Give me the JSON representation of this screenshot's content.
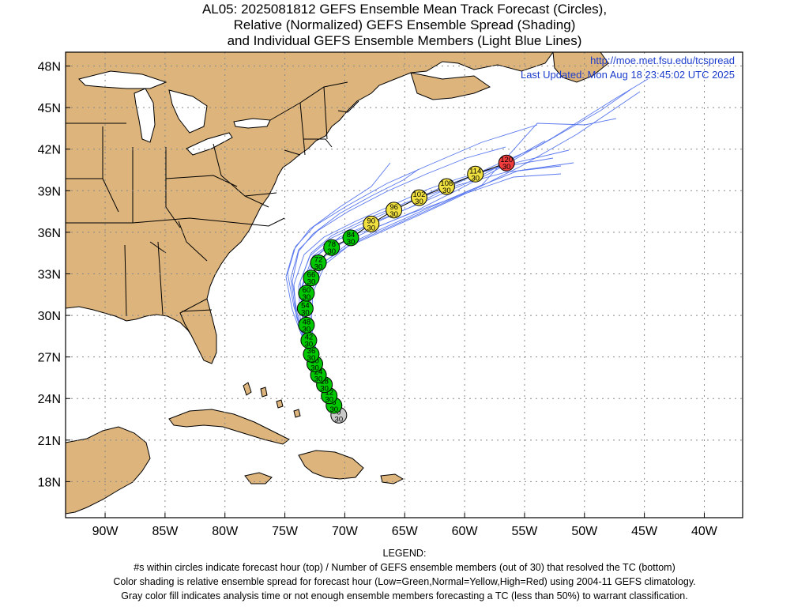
{
  "title": {
    "line1": "AL05: 2025081812 GEFS Ensemble Mean Track Forecast (Circles),",
    "line2": "Relative (Normalized) GEFS Ensemble Spread (Shading)",
    "line3": "and Individual GEFS Ensemble Members (Light Blue Lines)"
  },
  "header": {
    "url": "http://moe.met.fsu.edu/tcspread",
    "updated": "Last Updated: Mon Aug 18 23:45:02 UTC 2025"
  },
  "axes": {
    "lon_labels": [
      "90W",
      "85W",
      "80W",
      "75W",
      "70W",
      "65W",
      "60W",
      "55W",
      "50W",
      "45W",
      "40W"
    ],
    "lat_labels": [
      "48N",
      "45N",
      "42N",
      "39N",
      "36N",
      "33N",
      "30N",
      "27N",
      "24N",
      "21N",
      "18N"
    ],
    "lon_range": [
      -93.3,
      -36.8
    ],
    "lat_range": [
      15.4,
      49.0
    ],
    "grid": true
  },
  "colors": {
    "land": "#dcb47c",
    "water": "#ffffff",
    "member_line": "#5a78ee",
    "low": "#00c800",
    "normal": "#f0e040",
    "high": "#f03c3c",
    "gray": "#c8c8c8"
  },
  "track": [
    {
      "hour": "0",
      "members": "30",
      "lon": -70.5,
      "lat": 22.8,
      "cat": "gray"
    },
    {
      "hour": "6",
      "members": "30",
      "lon": -70.9,
      "lat": 23.5,
      "cat": "low"
    },
    {
      "hour": "12",
      "members": "30",
      "lon": -71.3,
      "lat": 24.2,
      "cat": "low"
    },
    {
      "hour": "18",
      "members": "30",
      "lon": -71.7,
      "lat": 25.0,
      "cat": "low"
    },
    {
      "hour": "24",
      "members": "30",
      "lon": -72.2,
      "lat": 25.7,
      "cat": "low"
    },
    {
      "hour": "30",
      "members": "30",
      "lon": -72.5,
      "lat": 26.5,
      "cat": "low"
    },
    {
      "hour": "36",
      "members": "30",
      "lon": -72.8,
      "lat": 27.2,
      "cat": "low"
    },
    {
      "hour": "42",
      "members": "30",
      "lon": -73.0,
      "lat": 28.2,
      "cat": "low"
    },
    {
      "hour": "48",
      "members": "30",
      "lon": -73.2,
      "lat": 29.3,
      "cat": "low"
    },
    {
      "hour": "54",
      "members": "30",
      "lon": -73.3,
      "lat": 30.5,
      "cat": "low"
    },
    {
      "hour": "60",
      "members": "30",
      "lon": -73.2,
      "lat": 31.6,
      "cat": "low"
    },
    {
      "hour": "66",
      "members": "30",
      "lon": -72.8,
      "lat": 32.7,
      "cat": "low"
    },
    {
      "hour": "72",
      "members": "30",
      "lon": -72.2,
      "lat": 33.8,
      "cat": "low"
    },
    {
      "hour": "78",
      "members": "30",
      "lon": -71.1,
      "lat": 34.9,
      "cat": "low"
    },
    {
      "hour": "84",
      "members": "30",
      "lon": -69.5,
      "lat": 35.6,
      "cat": "low"
    },
    {
      "hour": "90",
      "members": "30",
      "lon": -67.8,
      "lat": 36.6,
      "cat": "normal"
    },
    {
      "hour": "96",
      "members": "30",
      "lon": -65.9,
      "lat": 37.6,
      "cat": "normal"
    },
    {
      "hour": "102",
      "members": "30",
      "lon": -63.8,
      "lat": 38.5,
      "cat": "normal"
    },
    {
      "hour": "108",
      "members": "30",
      "lon": -61.5,
      "lat": 39.3,
      "cat": "normal"
    },
    {
      "hour": "114",
      "members": "30",
      "lon": -59.1,
      "lat": 40.2,
      "cat": "normal"
    },
    {
      "hour": "120",
      "members": "30",
      "lon": -56.5,
      "lat": 41.0,
      "cat": "high"
    }
  ],
  "legend": {
    "heading": "LEGEND:",
    "line1": "#s within circles indicate forecast hour (top) / Number of GEFS ensemble members (out of 30) that resolved the TC (bottom)",
    "line2": "Color shading is relative ensemble spread for forecast hour (Low=Green,Normal=Yellow,High=Red) using 2004-11 GEFS climatology.",
    "line3": "Gray color fill indicates analysis time or not enough ensemble members forecasting a TC (less than 50%) to warrant classification."
  }
}
